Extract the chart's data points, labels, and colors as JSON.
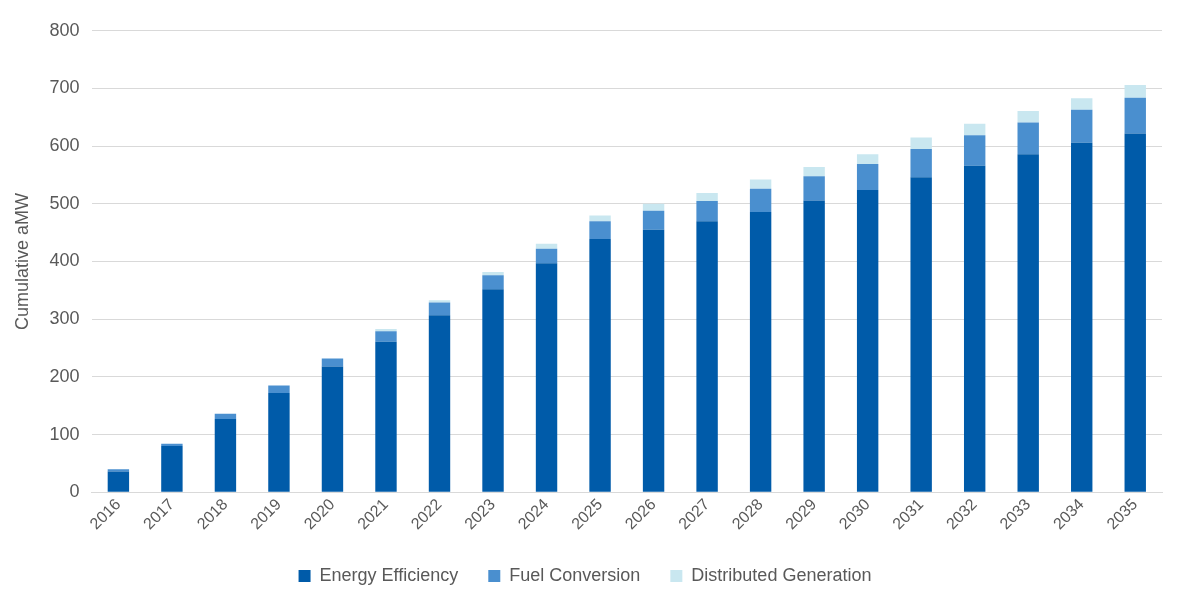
{
  "chart_data": {
    "type": "bar",
    "stacked": true,
    "ylabel": "Cumulative aMW",
    "categories": [
      "2016",
      "2017",
      "2018",
      "2019",
      "2020",
      "2021",
      "2022",
      "2023",
      "2024",
      "2025",
      "2026",
      "2027",
      "2028",
      "2029",
      "2030",
      "2031",
      "2032",
      "2033",
      "2034",
      "2035"
    ],
    "series": [
      {
        "name": "Energy Efficiency",
        "color": "#005ba9",
        "values": [
          36,
          80,
          127,
          172,
          218,
          261,
          307,
          352,
          397,
          439,
          455,
          470,
          486,
          506,
          524,
          546,
          566,
          586,
          606,
          622
        ]
      },
      {
        "name": "Fuel Conversion",
        "color": "#4a8fcf",
        "values": [
          4,
          4,
          9,
          13,
          14,
          18,
          22,
          24,
          25,
          31,
          33,
          35,
          40,
          42,
          45,
          49,
          53,
          55,
          57,
          62
        ]
      },
      {
        "name": "Distributed Generation",
        "color": "#c9e7f0",
        "values": [
          null,
          null,
          null,
          null,
          null,
          4,
          4,
          6,
          9,
          10,
          12,
          14,
          16,
          16,
          17,
          20,
          20,
          20,
          20,
          22
        ]
      }
    ],
    "ylim": [
      0,
      800
    ],
    "yticks": [
      0,
      100,
      200,
      300,
      400,
      500,
      600,
      700,
      800
    ],
    "grid": "y",
    "legend": "bottom"
  }
}
